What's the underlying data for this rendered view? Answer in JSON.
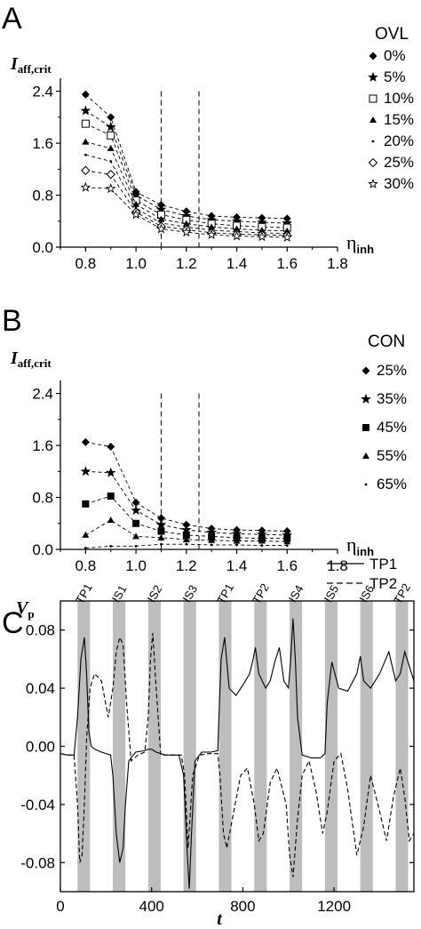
{
  "chart_data": [
    {
      "type": "line",
      "panel": "A",
      "ylabel": "I",
      "ylabel_sub": "aff,crit",
      "xlabel": "η",
      "xlabel_sub": "inh",
      "xlim": [
        0.7,
        1.8
      ],
      "ylim": [
        0.0,
        2.6
      ],
      "xticks": [
        "0.8",
        "1.0",
        "1.2",
        "1.4",
        "1.6",
        "1.8"
      ],
      "yticks": [
        "0.0",
        "0.8",
        "1.6",
        "2.4"
      ],
      "vlines": [
        1.1,
        1.25
      ],
      "legend_title": "OVL",
      "x": [
        0.8,
        0.9,
        1.0,
        1.1,
        1.2,
        1.3,
        1.4,
        1.5,
        1.6
      ],
      "series": [
        {
          "name": "0%",
          "marker": "diamond-filled",
          "values": [
            2.35,
            2.0,
            0.85,
            0.65,
            0.55,
            0.48,
            0.46,
            0.45,
            0.44
          ]
        },
        {
          "name": "5%",
          "marker": "star-filled",
          "values": [
            2.1,
            1.85,
            0.8,
            0.58,
            0.48,
            0.42,
            0.4,
            0.38,
            0.37
          ]
        },
        {
          "name": "10%",
          "marker": "square-open",
          "values": [
            1.9,
            1.72,
            0.72,
            0.5,
            0.42,
            0.36,
            0.33,
            0.31,
            0.3
          ]
        },
        {
          "name": "15%",
          "marker": "triangle-filled",
          "values": [
            1.62,
            1.52,
            0.66,
            0.43,
            0.36,
            0.31,
            0.28,
            0.26,
            0.25
          ]
        },
        {
          "name": "20%",
          "marker": "dot",
          "values": [
            1.42,
            1.32,
            0.6,
            0.37,
            0.31,
            0.26,
            0.24,
            0.22,
            0.21
          ]
        },
        {
          "name": "25%",
          "marker": "diamond-open",
          "values": [
            1.18,
            1.12,
            0.54,
            0.32,
            0.27,
            0.22,
            0.2,
            0.19,
            0.18
          ]
        },
        {
          "name": "30%",
          "marker": "star-open",
          "values": [
            0.92,
            0.9,
            0.5,
            0.28,
            0.23,
            0.19,
            0.17,
            0.16,
            0.15
          ]
        }
      ]
    },
    {
      "type": "line",
      "panel": "B",
      "ylabel": "I",
      "ylabel_sub": "aff,crit",
      "xlabel": "η",
      "xlabel_sub": "inh",
      "xlim": [
        0.7,
        1.8
      ],
      "ylim": [
        0.0,
        2.6
      ],
      "xticks": [
        "0.8",
        "1.0",
        "1.2",
        "1.4",
        "1.6",
        "1.8"
      ],
      "yticks": [
        "0.0",
        "0.8",
        "1.6",
        "2.4"
      ],
      "vlines": [
        1.1,
        1.25
      ],
      "legend_title": "CON",
      "x": [
        0.8,
        0.9,
        1.0,
        1.1,
        1.2,
        1.3,
        1.4,
        1.5,
        1.6
      ],
      "series": [
        {
          "name": "25%",
          "marker": "diamond-filled",
          "values": [
            1.65,
            1.58,
            0.72,
            0.48,
            0.38,
            0.32,
            0.3,
            0.29,
            0.28
          ]
        },
        {
          "name": "35%",
          "marker": "star-filled",
          "values": [
            1.2,
            1.18,
            0.6,
            0.38,
            0.3,
            0.26,
            0.24,
            0.23,
            0.22
          ]
        },
        {
          "name": "45%",
          "marker": "square-filled",
          "values": [
            0.7,
            0.82,
            0.4,
            0.28,
            0.22,
            0.2,
            0.18,
            0.17,
            0.17
          ]
        },
        {
          "name": "55%",
          "marker": "triangle-filled",
          "values": [
            0.22,
            0.45,
            0.2,
            0.18,
            0.15,
            0.14,
            0.13,
            0.13,
            0.12
          ]
        },
        {
          "name": "65%",
          "marker": "dot",
          "values": [
            0.02,
            0.05,
            0.05,
            0.08,
            0.08,
            0.07,
            0.07,
            0.06,
            0.06
          ]
        }
      ]
    },
    {
      "type": "line",
      "panel": "C",
      "ylabel": "V",
      "ylabel_sub": "p",
      "xlabel": "t",
      "xlim": [
        0,
        1550
      ],
      "ylim": [
        -0.1,
        0.1
      ],
      "xticks": [
        "0",
        "400",
        "800",
        "1200"
      ],
      "yticks": [
        "0.08",
        "0.04",
        "0.00",
        "-0.04",
        "-0.08"
      ],
      "legend": [
        "TP1",
        "TP2"
      ],
      "segment_labels": [
        "TP1",
        "IS1",
        "IS2",
        "IS3",
        "TP1",
        "TP2",
        "IS4",
        "IS5",
        "IS6",
        "TP2"
      ],
      "stim_starts": [
        75,
        230,
        385,
        540,
        695,
        850,
        1005,
        1160,
        1315,
        1470
      ],
      "stim_width": 55,
      "series": [
        {
          "name": "TP1",
          "style": "solid",
          "x": [
            0,
            30,
            60,
            75,
            90,
            105,
            115,
            125,
            135,
            150,
            180,
            220,
            230,
            245,
            260,
            275,
            285,
            300,
            330,
            370,
            385,
            400,
            420,
            440,
            460,
            480,
            500,
            520,
            540,
            555,
            565,
            575,
            590,
            620,
            660,
            690,
            695,
            705,
            720,
            740,
            770,
            800,
            830,
            845,
            855,
            870,
            900,
            920,
            940,
            960,
            980,
            1000,
            1010,
            1020,
            1030,
            1040,
            1060,
            1100,
            1140,
            1160,
            1170,
            1190,
            1220,
            1260,
            1300,
            1315,
            1330,
            1360,
            1400,
            1440,
            1470,
            1490,
            1510,
            1530,
            1550
          ],
          "y": [
            -0.005,
            -0.006,
            -0.006,
            0.02,
            0.06,
            0.075,
            0.05,
            0.01,
            0.0,
            -0.002,
            -0.004,
            -0.006,
            -0.02,
            -0.06,
            -0.08,
            -0.07,
            -0.04,
            -0.01,
            -0.004,
            -0.003,
            -0.002,
            -0.002,
            -0.004,
            -0.005,
            -0.006,
            -0.006,
            -0.006,
            -0.006,
            -0.02,
            -0.07,
            -0.098,
            -0.06,
            -0.01,
            -0.004,
            -0.004,
            -0.003,
            0.02,
            0.06,
            0.075,
            0.04,
            0.035,
            0.042,
            0.05,
            0.06,
            0.068,
            0.05,
            0.04,
            0.045,
            0.058,
            0.068,
            0.045,
            0.04,
            0.06,
            0.088,
            0.06,
            0.02,
            -0.006,
            -0.008,
            -0.008,
            -0.005,
            0.03,
            0.058,
            0.04,
            0.038,
            0.05,
            0.062,
            0.045,
            0.04,
            0.05,
            0.065,
            0.045,
            0.05,
            0.065,
            0.055,
            0.045
          ]
        },
        {
          "name": "TP2",
          "style": "dashed",
          "x": [
            0,
            30,
            60,
            75,
            85,
            95,
            105,
            115,
            130,
            150,
            180,
            210,
            230,
            245,
            260,
            275,
            290,
            310,
            340,
            370,
            385,
            395,
            405,
            420,
            440,
            470,
            500,
            530,
            545,
            560,
            580,
            610,
            650,
            690,
            700,
            715,
            730,
            760,
            790,
            820,
            850,
            870,
            890,
            920,
            950,
            990,
            1005,
            1020,
            1040,
            1060,
            1090,
            1120,
            1150,
            1170,
            1200,
            1230,
            1260,
            1300,
            1330,
            1360,
            1400,
            1430,
            1460,
            1490,
            1510,
            1530,
            1550
          ],
          "y": [
            -0.005,
            -0.006,
            -0.006,
            -0.04,
            -0.08,
            -0.075,
            -0.04,
            0.005,
            0.04,
            0.05,
            0.045,
            0.02,
            0.04,
            0.065,
            0.075,
            0.07,
            0.03,
            -0.01,
            -0.006,
            -0.004,
            0.02,
            0.06,
            0.078,
            0.04,
            -0.006,
            -0.006,
            -0.006,
            -0.006,
            -0.02,
            -0.07,
            -0.02,
            -0.006,
            -0.005,
            -0.005,
            -0.02,
            -0.06,
            -0.07,
            -0.045,
            -0.02,
            -0.015,
            -0.04,
            -0.065,
            -0.06,
            -0.025,
            -0.015,
            -0.04,
            -0.075,
            -0.09,
            -0.05,
            -0.02,
            -0.01,
            -0.03,
            -0.06,
            -0.045,
            -0.01,
            -0.005,
            -0.03,
            -0.075,
            -0.055,
            -0.02,
            -0.045,
            -0.065,
            -0.035,
            -0.015,
            -0.035,
            -0.065,
            -0.06
          ]
        }
      ]
    }
  ]
}
